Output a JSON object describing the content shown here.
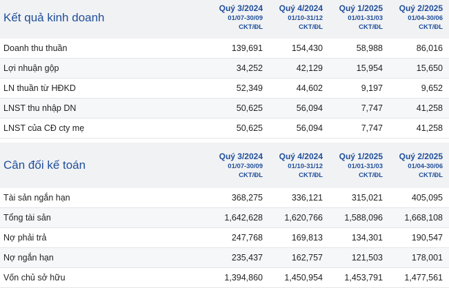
{
  "periods": [
    {
      "quarter": "Quý 3/2024",
      "range": "01/07-30/09",
      "unit": "CKT/ĐL"
    },
    {
      "quarter": "Quý 4/2024",
      "range": "01/10-31/12",
      "unit": "CKT/ĐL"
    },
    {
      "quarter": "Quý 1/2025",
      "range": "01/01-31/03",
      "unit": "CKT/ĐL"
    },
    {
      "quarter": "Quý 2/2025",
      "range": "01/04-30/06",
      "unit": "CKT/ĐL"
    }
  ],
  "business_results": {
    "title": "Kết quả kinh doanh",
    "rows": [
      {
        "label": "Doanh thu thuần",
        "values": [
          "139,691",
          "154,430",
          "58,988",
          "86,016"
        ]
      },
      {
        "label": "Lợi nhuận gộp",
        "values": [
          "34,252",
          "42,129",
          "15,954",
          "15,650"
        ]
      },
      {
        "label": "LN thuần từ HĐKD",
        "values": [
          "52,349",
          "44,602",
          "9,197",
          "9,652"
        ]
      },
      {
        "label": "LNST thu nhập DN",
        "values": [
          "50,625",
          "56,094",
          "7,747",
          "41,258"
        ]
      },
      {
        "label": "LNST của CĐ cty mẹ",
        "values": [
          "50,625",
          "56,094",
          "7,747",
          "41,258"
        ]
      }
    ]
  },
  "balance_sheet": {
    "title": "Cân đối kế toán",
    "rows": [
      {
        "label": "Tài sản ngắn hạn",
        "values": [
          "368,275",
          "336,121",
          "315,021",
          "405,095"
        ]
      },
      {
        "label": "Tổng tài sản",
        "values": [
          "1,642,628",
          "1,620,766",
          "1,588,096",
          "1,668,108"
        ]
      },
      {
        "label": "Nợ phải trả",
        "values": [
          "247,768",
          "169,813",
          "134,301",
          "190,547"
        ]
      },
      {
        "label": "Nợ ngắn hạn",
        "values": [
          "235,437",
          "162,757",
          "121,503",
          "178,001"
        ]
      },
      {
        "label": "Vốn chủ sở hữu",
        "values": [
          "1,394,860",
          "1,450,954",
          "1,453,791",
          "1,477,561"
        ]
      }
    ]
  }
}
